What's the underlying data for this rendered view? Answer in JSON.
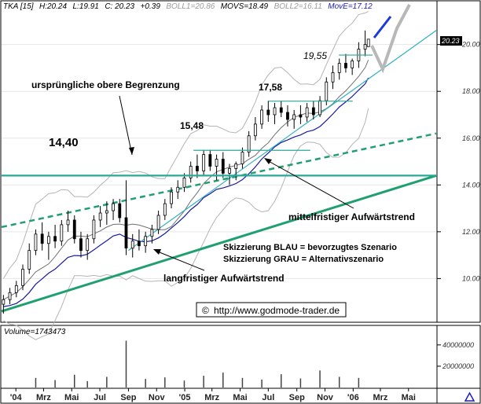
{
  "header": {
    "symbol": "TKA [15]",
    "high": "H:20.24",
    "low": "L:19.91",
    "close": "C: 20.23",
    "change": "+0.39",
    "boll1": "BOLL1=20.86",
    "movs": "MOVS=18.49",
    "boll2": "BOLL2=16.11",
    "move": "MovE=17.12"
  },
  "price_badge": "20.23",
  "annotations": {
    "upper_bound": "ursprüngliche obere Begrenzung",
    "mid_trend": "mittelfristiger Aufwärtstrend",
    "long_trend": "langfristiger Aufwärtstrend",
    "sketch_blue": "Skizzierung BLAU = bevorzugtes Szenario",
    "sketch_grey": "Skizzierung GRAU = Alternativszenario",
    "source": "http://www.godmode-trader.de",
    "copyright": "©"
  },
  "levels": [
    {
      "label": "14,40",
      "value": 14.4
    },
    {
      "label": "15,48",
      "value": 15.48
    },
    {
      "label": "17,58",
      "value": 17.58
    },
    {
      "label": "19,55",
      "value": 19.55
    }
  ],
  "volume_header": "Volume=1743473",
  "colors": {
    "candle": "#000000",
    "band": "#b4b4b4",
    "sma": "#707070",
    "ema": "#1a1aa0",
    "trend": "#20a070",
    "resistance": "#2aa89a",
    "mid_trend": "#30b0c0",
    "scenario_blue": "#1a3adf",
    "scenario_grey": "#b8b8b8",
    "volume": "#444444"
  },
  "chart_data": {
    "type": "candlestick",
    "title": "TKA [15]",
    "ylim": [
      8.3,
      21.5
    ],
    "yticks": [
      "10.00",
      "12.00",
      "14.00",
      "16.00",
      "18.00",
      "20.00"
    ],
    "ytick_values": [
      10,
      12,
      14,
      16,
      18,
      20
    ],
    "x_labels": [
      "'04",
      "Mrz",
      "Mai",
      "Jul",
      "Sep",
      "Nov",
      "'05",
      "Mrz",
      "Mai",
      "Jul",
      "Sep",
      "Nov",
      "'06",
      "Mrz",
      "Mai"
    ],
    "x_range": [
      "2003-12-01",
      "2006-06-30"
    ],
    "ohlc": [
      {
        "d": "2003-12-05",
        "o": 8.9,
        "h": 9.3,
        "l": 8.5,
        "c": 9.1
      },
      {
        "d": "2003-12-19",
        "o": 9.1,
        "h": 9.6,
        "l": 8.9,
        "c": 9.4
      },
      {
        "d": "2004-01-02",
        "o": 9.4,
        "h": 9.9,
        "l": 9.2,
        "c": 9.7
      },
      {
        "d": "2004-01-16",
        "o": 9.7,
        "h": 10.6,
        "l": 9.5,
        "c": 10.4
      },
      {
        "d": "2004-01-30",
        "o": 10.4,
        "h": 11.5,
        "l": 10.2,
        "c": 11.2
      },
      {
        "d": "2004-02-13",
        "o": 11.2,
        "h": 12.1,
        "l": 11.0,
        "c": 11.9
      },
      {
        "d": "2004-02-27",
        "o": 11.9,
        "h": 12.4,
        "l": 11.2,
        "c": 11.5
      },
      {
        "d": "2004-03-12",
        "o": 11.5,
        "h": 12.0,
        "l": 10.8,
        "c": 11.8
      },
      {
        "d": "2004-03-26",
        "o": 11.8,
        "h": 12.3,
        "l": 11.3,
        "c": 11.6
      },
      {
        "d": "2004-04-09",
        "o": 11.6,
        "h": 12.5,
        "l": 11.4,
        "c": 12.3
      },
      {
        "d": "2004-04-23",
        "o": 12.3,
        "h": 12.9,
        "l": 12.0,
        "c": 12.5
      },
      {
        "d": "2004-05-07",
        "o": 12.5,
        "h": 12.7,
        "l": 11.5,
        "c": 11.7
      },
      {
        "d": "2004-05-21",
        "o": 11.7,
        "h": 12.0,
        "l": 10.9,
        "c": 11.2
      },
      {
        "d": "2004-06-04",
        "o": 11.2,
        "h": 11.9,
        "l": 10.8,
        "c": 11.7
      },
      {
        "d": "2004-06-18",
        "o": 11.7,
        "h": 12.7,
        "l": 11.5,
        "c": 12.5
      },
      {
        "d": "2004-07-02",
        "o": 12.5,
        "h": 13.1,
        "l": 12.2,
        "c": 12.8
      },
      {
        "d": "2004-07-16",
        "o": 12.8,
        "h": 13.3,
        "l": 12.3,
        "c": 12.9
      },
      {
        "d": "2004-07-30",
        "o": 12.9,
        "h": 13.4,
        "l": 12.5,
        "c": 13.2
      },
      {
        "d": "2004-08-13",
        "o": 13.2,
        "h": 13.4,
        "l": 12.4,
        "c": 12.6
      },
      {
        "d": "2004-08-27",
        "o": 12.6,
        "h": 14.2,
        "l": 11.0,
        "c": 11.3
      },
      {
        "d": "2004-09-10",
        "o": 11.3,
        "h": 11.9,
        "l": 10.9,
        "c": 11.6
      },
      {
        "d": "2004-09-24",
        "o": 11.6,
        "h": 12.1,
        "l": 11.2,
        "c": 11.4
      },
      {
        "d": "2004-10-08",
        "o": 11.4,
        "h": 12.0,
        "l": 11.1,
        "c": 11.8
      },
      {
        "d": "2004-10-22",
        "o": 11.8,
        "h": 12.3,
        "l": 11.5,
        "c": 12.1
      },
      {
        "d": "2004-11-05",
        "o": 12.1,
        "h": 12.9,
        "l": 11.9,
        "c": 12.7
      },
      {
        "d": "2004-11-19",
        "o": 12.7,
        "h": 13.4,
        "l": 12.5,
        "c": 13.2
      },
      {
        "d": "2004-12-03",
        "o": 13.2,
        "h": 13.9,
        "l": 13.0,
        "c": 13.7
      },
      {
        "d": "2004-12-17",
        "o": 13.7,
        "h": 14.2,
        "l": 13.4,
        "c": 13.9
      },
      {
        "d": "2004-12-31",
        "o": 13.9,
        "h": 14.5,
        "l": 13.7,
        "c": 14.3
      },
      {
        "d": "2005-01-14",
        "o": 14.3,
        "h": 15.0,
        "l": 14.1,
        "c": 14.8
      },
      {
        "d": "2005-01-28",
        "o": 14.8,
        "h": 15.3,
        "l": 14.3,
        "c": 14.6
      },
      {
        "d": "2005-02-11",
        "o": 14.6,
        "h": 15.5,
        "l": 14.4,
        "c": 15.3
      },
      {
        "d": "2005-02-25",
        "o": 15.3,
        "h": 15.5,
        "l": 14.6,
        "c": 14.8
      },
      {
        "d": "2005-03-11",
        "o": 14.8,
        "h": 15.3,
        "l": 14.2,
        "c": 15.1
      },
      {
        "d": "2005-03-25",
        "o": 15.1,
        "h": 15.4,
        "l": 14.3,
        "c": 14.5
      },
      {
        "d": "2005-04-08",
        "o": 14.5,
        "h": 14.9,
        "l": 14.0,
        "c": 14.7
      },
      {
        "d": "2005-04-22",
        "o": 14.7,
        "h": 15.0,
        "l": 14.2,
        "c": 14.9
      },
      {
        "d": "2005-05-06",
        "o": 14.9,
        "h": 15.6,
        "l": 14.7,
        "c": 15.4
      },
      {
        "d": "2005-05-20",
        "o": 15.4,
        "h": 16.3,
        "l": 15.2,
        "c": 16.1
      },
      {
        "d": "2005-06-03",
        "o": 16.1,
        "h": 16.9,
        "l": 15.9,
        "c": 16.6
      },
      {
        "d": "2005-06-17",
        "o": 16.6,
        "h": 17.4,
        "l": 16.4,
        "c": 17.2
      },
      {
        "d": "2005-07-01",
        "o": 17.2,
        "h": 17.6,
        "l": 16.7,
        "c": 17.0
      },
      {
        "d": "2005-07-15",
        "o": 17.0,
        "h": 17.5,
        "l": 16.6,
        "c": 17.3
      },
      {
        "d": "2005-07-29",
        "o": 17.3,
        "h": 17.6,
        "l": 16.9,
        "c": 17.1
      },
      {
        "d": "2005-08-12",
        "o": 17.1,
        "h": 17.4,
        "l": 16.5,
        "c": 16.8
      },
      {
        "d": "2005-08-26",
        "o": 16.8,
        "h": 17.2,
        "l": 16.4,
        "c": 17.0
      },
      {
        "d": "2005-09-09",
        "o": 17.0,
        "h": 17.4,
        "l": 16.6,
        "c": 16.9
      },
      {
        "d": "2005-09-23",
        "o": 16.9,
        "h": 17.5,
        "l": 16.7,
        "c": 17.3
      },
      {
        "d": "2005-10-07",
        "o": 17.3,
        "h": 17.6,
        "l": 16.8,
        "c": 17.0
      },
      {
        "d": "2005-10-21",
        "o": 17.0,
        "h": 17.8,
        "l": 16.9,
        "c": 17.6
      },
      {
        "d": "2005-11-04",
        "o": 17.6,
        "h": 18.6,
        "l": 17.4,
        "c": 18.4
      },
      {
        "d": "2005-11-18",
        "o": 18.4,
        "h": 19.1,
        "l": 18.1,
        "c": 18.8
      },
      {
        "d": "2005-12-02",
        "o": 18.8,
        "h": 19.4,
        "l": 18.5,
        "c": 19.2
      },
      {
        "d": "2005-12-16",
        "o": 19.2,
        "h": 19.6,
        "l": 18.8,
        "c": 19.0
      },
      {
        "d": "2005-12-30",
        "o": 19.0,
        "h": 19.4,
        "l": 18.7,
        "c": 19.3
      },
      {
        "d": "2006-01-13",
        "o": 19.3,
        "h": 20.1,
        "l": 19.0,
        "c": 19.8
      },
      {
        "d": "2006-01-27",
        "o": 19.8,
        "h": 20.6,
        "l": 19.5,
        "c": 20.0
      },
      {
        "d": "2006-02-03",
        "o": 19.91,
        "h": 20.24,
        "l": 19.91,
        "c": 20.23
      }
    ],
    "volume": {
      "ylim": [
        0,
        48000000
      ],
      "yticks": [
        "20000000",
        "40000000"
      ],
      "ytick_values": [
        20000000,
        40000000
      ],
      "bars": [
        {
          "d": "2004-02-13",
          "v": 9000000
        },
        {
          "d": "2004-03-26",
          "v": 7000000
        },
        {
          "d": "2004-05-07",
          "v": 12000000
        },
        {
          "d": "2004-06-04",
          "v": 6000000
        },
        {
          "d": "2004-07-16",
          "v": 10000000
        },
        {
          "d": "2004-08-27",
          "v": 44000000
        },
        {
          "d": "2004-10-08",
          "v": 8000000
        },
        {
          "d": "2004-11-19",
          "v": 9500000
        },
        {
          "d": "2004-12-31",
          "v": 6500000
        },
        {
          "d": "2005-02-11",
          "v": 11000000
        },
        {
          "d": "2005-03-25",
          "v": 14000000
        },
        {
          "d": "2005-05-06",
          "v": 9000000
        },
        {
          "d": "2005-06-17",
          "v": 7500000
        },
        {
          "d": "2005-07-29",
          "v": 12500000
        },
        {
          "d": "2005-09-09",
          "v": 8500000
        },
        {
          "d": "2005-10-21",
          "v": 16000000
        },
        {
          "d": "2005-12-02",
          "v": 10000000
        },
        {
          "d": "2006-01-13",
          "v": 9000000
        }
      ]
    },
    "horizontal_levels": [
      14.4,
      15.48,
      17.58,
      19.55
    ]
  }
}
